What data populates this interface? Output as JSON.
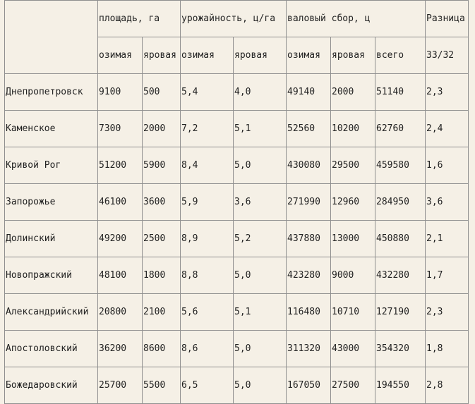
{
  "header": {
    "group_area": "площадь, га",
    "group_yield": "урожайность, ц/га",
    "group_harvest": "валовый сбор, ц",
    "group_diff": "Разница",
    "sub": [
      "озимая",
      "яровая",
      "озимая",
      "яровая",
      "озимая",
      "яровая",
      "всего"
    ],
    "diff_sub": "33/32"
  },
  "rows": [
    {
      "region": "Днепропетровск",
      "area_winter": "9100",
      "area_spring": "500",
      "yield_winter": "5,4",
      "yield_spring": "4,0",
      "harvest_winter": "49140",
      "harvest_spring": "2000",
      "harvest_total": "51140",
      "diff": "2,3"
    },
    {
      "region": "Каменское",
      "area_winter": "7300",
      "area_spring": "2000",
      "yield_winter": "7,2",
      "yield_spring": "5,1",
      "harvest_winter": "52560",
      "harvest_spring": "10200",
      "harvest_total": "62760",
      "diff": "2,4"
    },
    {
      "region": "Кривой Рог",
      "area_winter": "51200",
      "area_spring": "5900",
      "yield_winter": "8,4",
      "yield_spring": "5,0",
      "harvest_winter": "430080",
      "harvest_spring": "29500",
      "harvest_total": "459580",
      "diff": "1,6"
    },
    {
      "region": "Запорожье",
      "area_winter": "46100",
      "area_spring": "3600",
      "yield_winter": "5,9",
      "yield_spring": "3,6",
      "harvest_winter": "271990",
      "harvest_spring": "12960",
      "harvest_total": "284950",
      "diff": "3,6"
    },
    {
      "region": "Долинский",
      "area_winter": "49200",
      "area_spring": "2500",
      "yield_winter": "8,9",
      "yield_spring": "5,2",
      "harvest_winter": "437880",
      "harvest_spring": "13000",
      "harvest_total": "450880",
      "diff": "2,1"
    },
    {
      "region": "Новопражский",
      "area_winter": "48100",
      "area_spring": "1800",
      "yield_winter": "8,8",
      "yield_spring": "5,0",
      "harvest_winter": "423280",
      "harvest_spring": "9000",
      "harvest_total": "432280",
      "diff": "1,7"
    },
    {
      "region": "Александрийский",
      "area_winter": "20800",
      "area_spring": "2100",
      "yield_winter": "5,6",
      "yield_spring": "5,1",
      "harvest_winter": "116480",
      "harvest_spring": "10710",
      "harvest_total": "127190",
      "diff": "2,3"
    },
    {
      "region": "Апостоловский",
      "area_winter": "36200",
      "area_spring": "8600",
      "yield_winter": "8,6",
      "yield_spring": "5,0",
      "harvest_winter": "311320",
      "harvest_spring": "43000",
      "harvest_total": "354320",
      "diff": "1,8"
    },
    {
      "region": "Божедаровский",
      "area_winter": "25700",
      "area_spring": "5500",
      "yield_winter": "6,5",
      "yield_spring": "5,0",
      "harvest_winter": "167050",
      "harvest_spring": "27500",
      "harvest_total": "194550",
      "diff": "2,8"
    }
  ]
}
